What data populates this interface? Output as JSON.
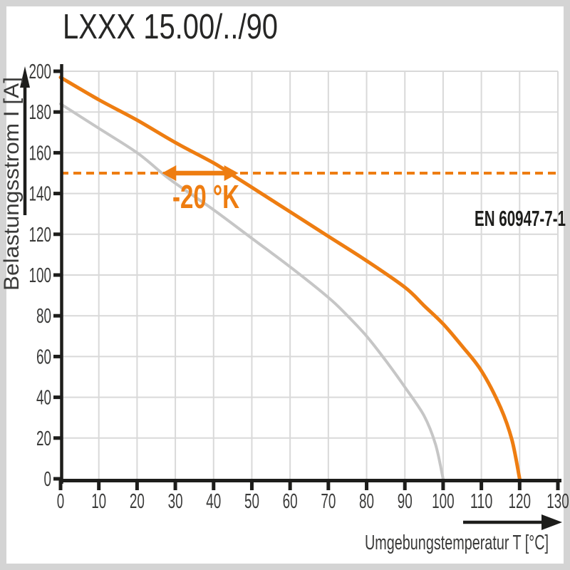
{
  "title": "LXXX 15.00/../90",
  "colors": {
    "accent_orange": "#ee7d11",
    "curve_gray": "#c6c6c6",
    "grid": "#d9d9d9",
    "axis": "#1d1d1b",
    "tick_text": "#3a3a39",
    "title_text": "#262625",
    "frame": "#d4d4d4",
    "panel": "#ffffff"
  },
  "chart_data": {
    "type": "line",
    "title": "LXXX 15.00/../90",
    "xlabel": "Umgebungstemperatur T [°C]",
    "ylabel": "Belastungsstrom I [A]",
    "xlim": [
      0,
      130
    ],
    "ylim": [
      0,
      200
    ],
    "x_ticks": [
      0,
      10,
      20,
      30,
      40,
      50,
      60,
      70,
      80,
      90,
      100,
      110,
      120,
      130
    ],
    "y_ticks": [
      0,
      20,
      40,
      60,
      80,
      100,
      120,
      140,
      160,
      180,
      200
    ],
    "grid": true,
    "legend_position": "none",
    "series": [
      {
        "name": "derating-curve-orange",
        "color": "#ee7d11",
        "stroke_width": 5,
        "points": [
          [
            0,
            197
          ],
          [
            10,
            186
          ],
          [
            20,
            176
          ],
          [
            30,
            165
          ],
          [
            40,
            155
          ],
          [
            45,
            149
          ],
          [
            50,
            143
          ],
          [
            60,
            131
          ],
          [
            70,
            119
          ],
          [
            80,
            107
          ],
          [
            90,
            94
          ],
          [
            95,
            85
          ],
          [
            100,
            76
          ],
          [
            105,
            65
          ],
          [
            110,
            53
          ],
          [
            115,
            35
          ],
          [
            118,
            19
          ],
          [
            120,
            0
          ]
        ]
      },
      {
        "name": "reference-derating-curve-gray",
        "color": "#c6c6c6",
        "stroke_width": 4,
        "points": [
          [
            0,
            184
          ],
          [
            10,
            172
          ],
          [
            20,
            160
          ],
          [
            26.5,
            150
          ],
          [
            30,
            145
          ],
          [
            40,
            132
          ],
          [
            50,
            118
          ],
          [
            60,
            104
          ],
          [
            70,
            89
          ],
          [
            75,
            80
          ],
          [
            80,
            70
          ],
          [
            85,
            58
          ],
          [
            90,
            45
          ],
          [
            95,
            31
          ],
          [
            98,
            17
          ],
          [
            100,
            0
          ]
        ]
      }
    ],
    "annotations": {
      "dashed_line": {
        "y": 150,
        "x_from": 0,
        "x_to": 130,
        "color": "#ee7d11",
        "style": "dashed"
      },
      "shift_arrow": {
        "y": 150,
        "x_from": 26.5,
        "x_to": 46.5,
        "label": "-20 °K",
        "color": "#ee7d11"
      },
      "standard": {
        "text": "EN 60947-7-1",
        "x": 130,
        "y": 127,
        "align": "right"
      }
    }
  }
}
